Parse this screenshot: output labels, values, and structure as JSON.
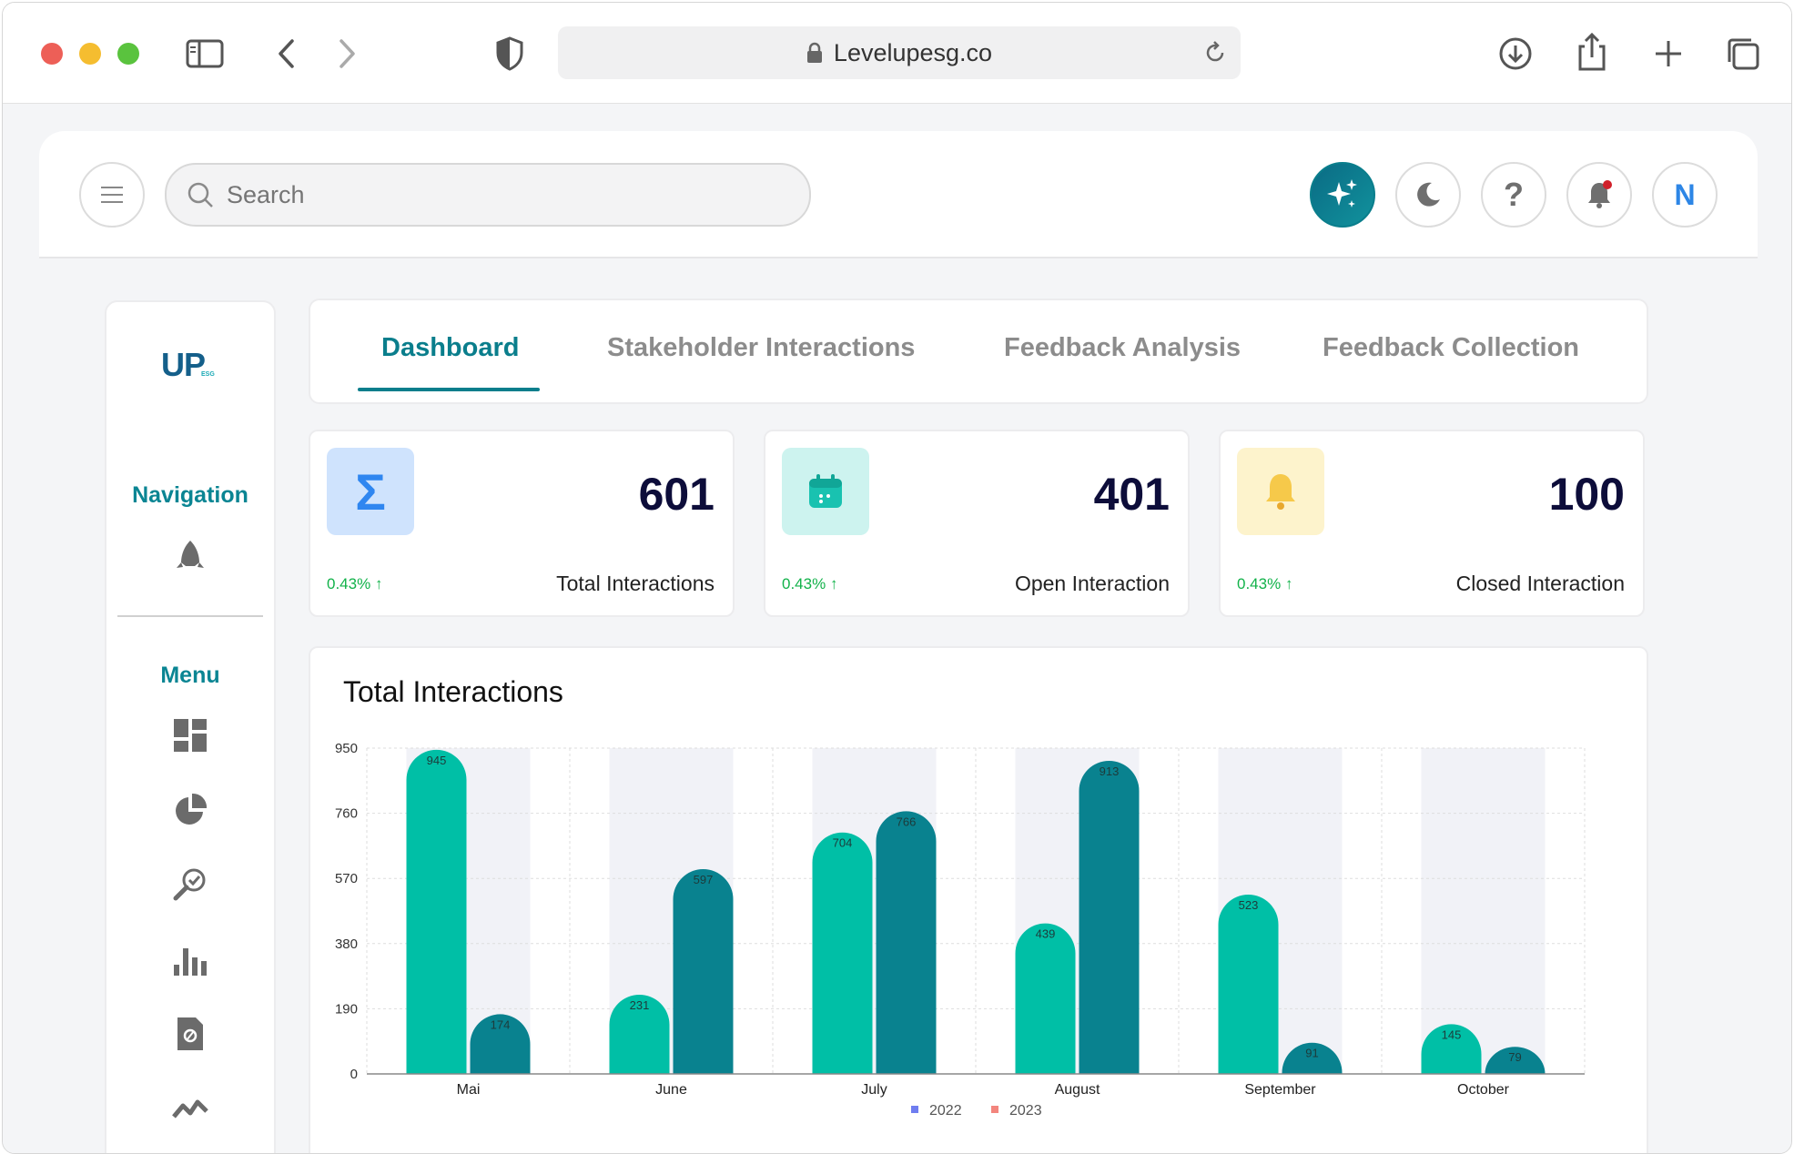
{
  "browser": {
    "url": "Levelupesg.co"
  },
  "topbar": {
    "search_placeholder": "Search",
    "user_initial": "N"
  },
  "sidebar": {
    "logo_text": "UP",
    "logo_sub": "ESG",
    "navigation_title": "Navigation",
    "menu_title": "Menu"
  },
  "tabs": [
    {
      "label": "Dashboard",
      "active": true
    },
    {
      "label": "Stakeholder Interactions",
      "active": false
    },
    {
      "label": "Feedback Analysis",
      "active": false
    },
    {
      "label": "Feedback Collection",
      "active": false
    }
  ],
  "cards": [
    {
      "value": "601",
      "change": "0.43%",
      "label": "Total Interactions",
      "icon": "sigma-icon",
      "bg": "#cfe3fd",
      "fg": "#2f86f0"
    },
    {
      "value": "401",
      "change": "0.43%",
      "label": "Open Interaction",
      "icon": "calendar-icon",
      "bg": "#cdf3ef",
      "fg": "#19c2b0"
    },
    {
      "value": "100",
      "change": "0.43%",
      "label": "Closed Interaction",
      "icon": "bell-icon",
      "bg": "#fdf3cc",
      "fg": "#f6c94a"
    }
  ],
  "colors": {
    "accent": "#0a8593",
    "series_2022": "#00bfa6",
    "series_2023": "#09828f",
    "legend_2022": "#6f7df0",
    "legend_2023": "#f3857d",
    "positive": "#12b24a"
  },
  "chart_data": {
    "type": "bar",
    "title": "Total Interactions",
    "categories": [
      "Mai",
      "June",
      "July",
      "August",
      "September",
      "October"
    ],
    "series": [
      {
        "name": "2022",
        "values": [
          945,
          231,
          704,
          439,
          523,
          145
        ]
      },
      {
        "name": "2023",
        "values": [
          174,
          597,
          766,
          913,
          91,
          79
        ]
      }
    ],
    "ylim": [
      0,
      950
    ],
    "yticks": [
      0,
      190,
      380,
      570,
      760,
      950
    ],
    "grid": true,
    "legend_position": "bottom"
  }
}
